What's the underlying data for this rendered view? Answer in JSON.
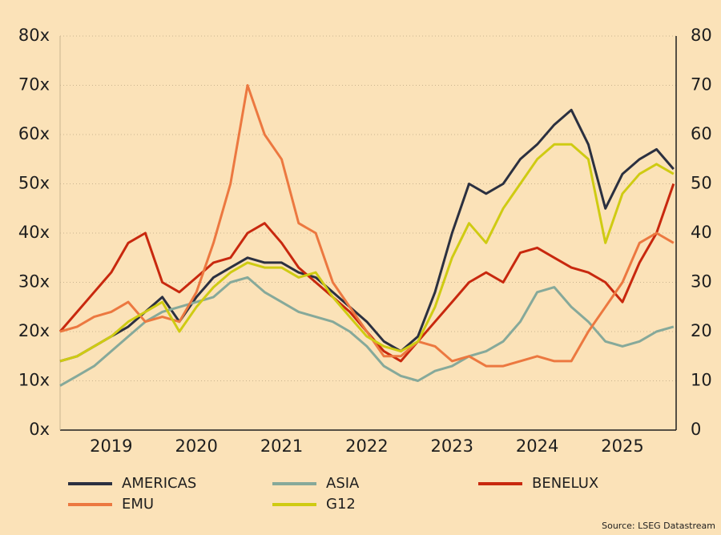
{
  "chart_data": {
    "type": "line",
    "x": [
      2018.4,
      2018.6,
      2018.8,
      2019.0,
      2019.2,
      2019.4,
      2019.6,
      2019.8,
      2020.0,
      2020.2,
      2020.4,
      2020.6,
      2020.8,
      2021.0,
      2021.2,
      2021.4,
      2021.6,
      2021.8,
      2022.0,
      2022.2,
      2022.4,
      2022.6,
      2022.8,
      2023.0,
      2023.2,
      2023.4,
      2023.6,
      2023.8,
      2024.0,
      2024.2,
      2024.4,
      2024.6,
      2024.8,
      2025.0,
      2025.2,
      2025.4,
      2025.6
    ],
    "xlim": [
      2018.4,
      2025.63
    ],
    "xticks": [
      2019,
      2020,
      2021,
      2022,
      2023,
      2024,
      2025
    ],
    "ylim": [
      0,
      80
    ],
    "yticks": [
      {
        "value": 0,
        "label": "0x"
      },
      {
        "value": 10,
        "label": "10x"
      },
      {
        "value": 20,
        "label": "20x"
      },
      {
        "value": 30,
        "label": "30x"
      },
      {
        "value": 40,
        "label": "40x"
      },
      {
        "value": 50,
        "label": "50x"
      },
      {
        "value": 60,
        "label": "60x"
      },
      {
        "value": 70,
        "label": "70x"
      },
      {
        "value": 80,
        "label": "80x"
      }
    ],
    "y2lim": [
      0,
      80
    ],
    "y2ticks": [
      0,
      10,
      20,
      30,
      40,
      50,
      60,
      70,
      80
    ],
    "grid": true,
    "series": [
      {
        "name": "AMERICAS",
        "color": "#2b3040",
        "values": [
          14,
          15,
          17,
          19,
          21,
          24,
          27,
          22,
          27,
          31,
          33,
          35,
          34,
          34,
          32,
          31,
          28,
          25,
          22,
          18,
          16,
          19,
          28,
          40,
          50,
          48,
          50,
          55,
          58,
          62,
          65,
          58,
          45,
          52,
          55,
          57,
          53
        ]
      },
      {
        "name": "ASIA",
        "color": "#86a99a",
        "values": [
          9,
          11,
          13,
          16,
          19,
          22,
          24,
          25,
          26,
          27,
          30,
          31,
          28,
          26,
          24,
          23,
          22,
          20,
          17,
          13,
          11,
          10,
          12,
          13,
          15,
          16,
          18,
          22,
          28,
          29,
          25,
          22,
          18,
          17,
          18,
          20,
          21
        ]
      },
      {
        "name": "BENELUX",
        "color": "#c8280e",
        "values": [
          20,
          24,
          28,
          32,
          38,
          40,
          30,
          28,
          31,
          34,
          35,
          40,
          42,
          38,
          33,
          30,
          27,
          24,
          20,
          16,
          14,
          18,
          22,
          26,
          30,
          32,
          30,
          36,
          37,
          35,
          33,
          32,
          30,
          26,
          34,
          40,
          50
        ]
      },
      {
        "name": "EMU",
        "color": "#ec7840",
        "values": [
          20,
          21,
          23,
          24,
          26,
          22,
          23,
          22,
          28,
          38,
          50,
          70,
          60,
          55,
          42,
          40,
          30,
          25,
          20,
          15,
          15,
          18,
          17,
          14,
          15,
          13,
          13,
          14,
          15,
          14,
          14,
          20,
          25,
          30,
          38,
          40,
          38
        ]
      },
      {
        "name": "G12",
        "color": "#cfcb12",
        "values": [
          14,
          15,
          17,
          19,
          22,
          24,
          26,
          20,
          25,
          29,
          32,
          34,
          33,
          33,
          31,
          32,
          27,
          23,
          19,
          17,
          16,
          18,
          25,
          35,
          42,
          38,
          45,
          50,
          55,
          58,
          58,
          55,
          38,
          48,
          52,
          54,
          52
        ]
      }
    ],
    "source": "Source: LSEG Datastream"
  }
}
